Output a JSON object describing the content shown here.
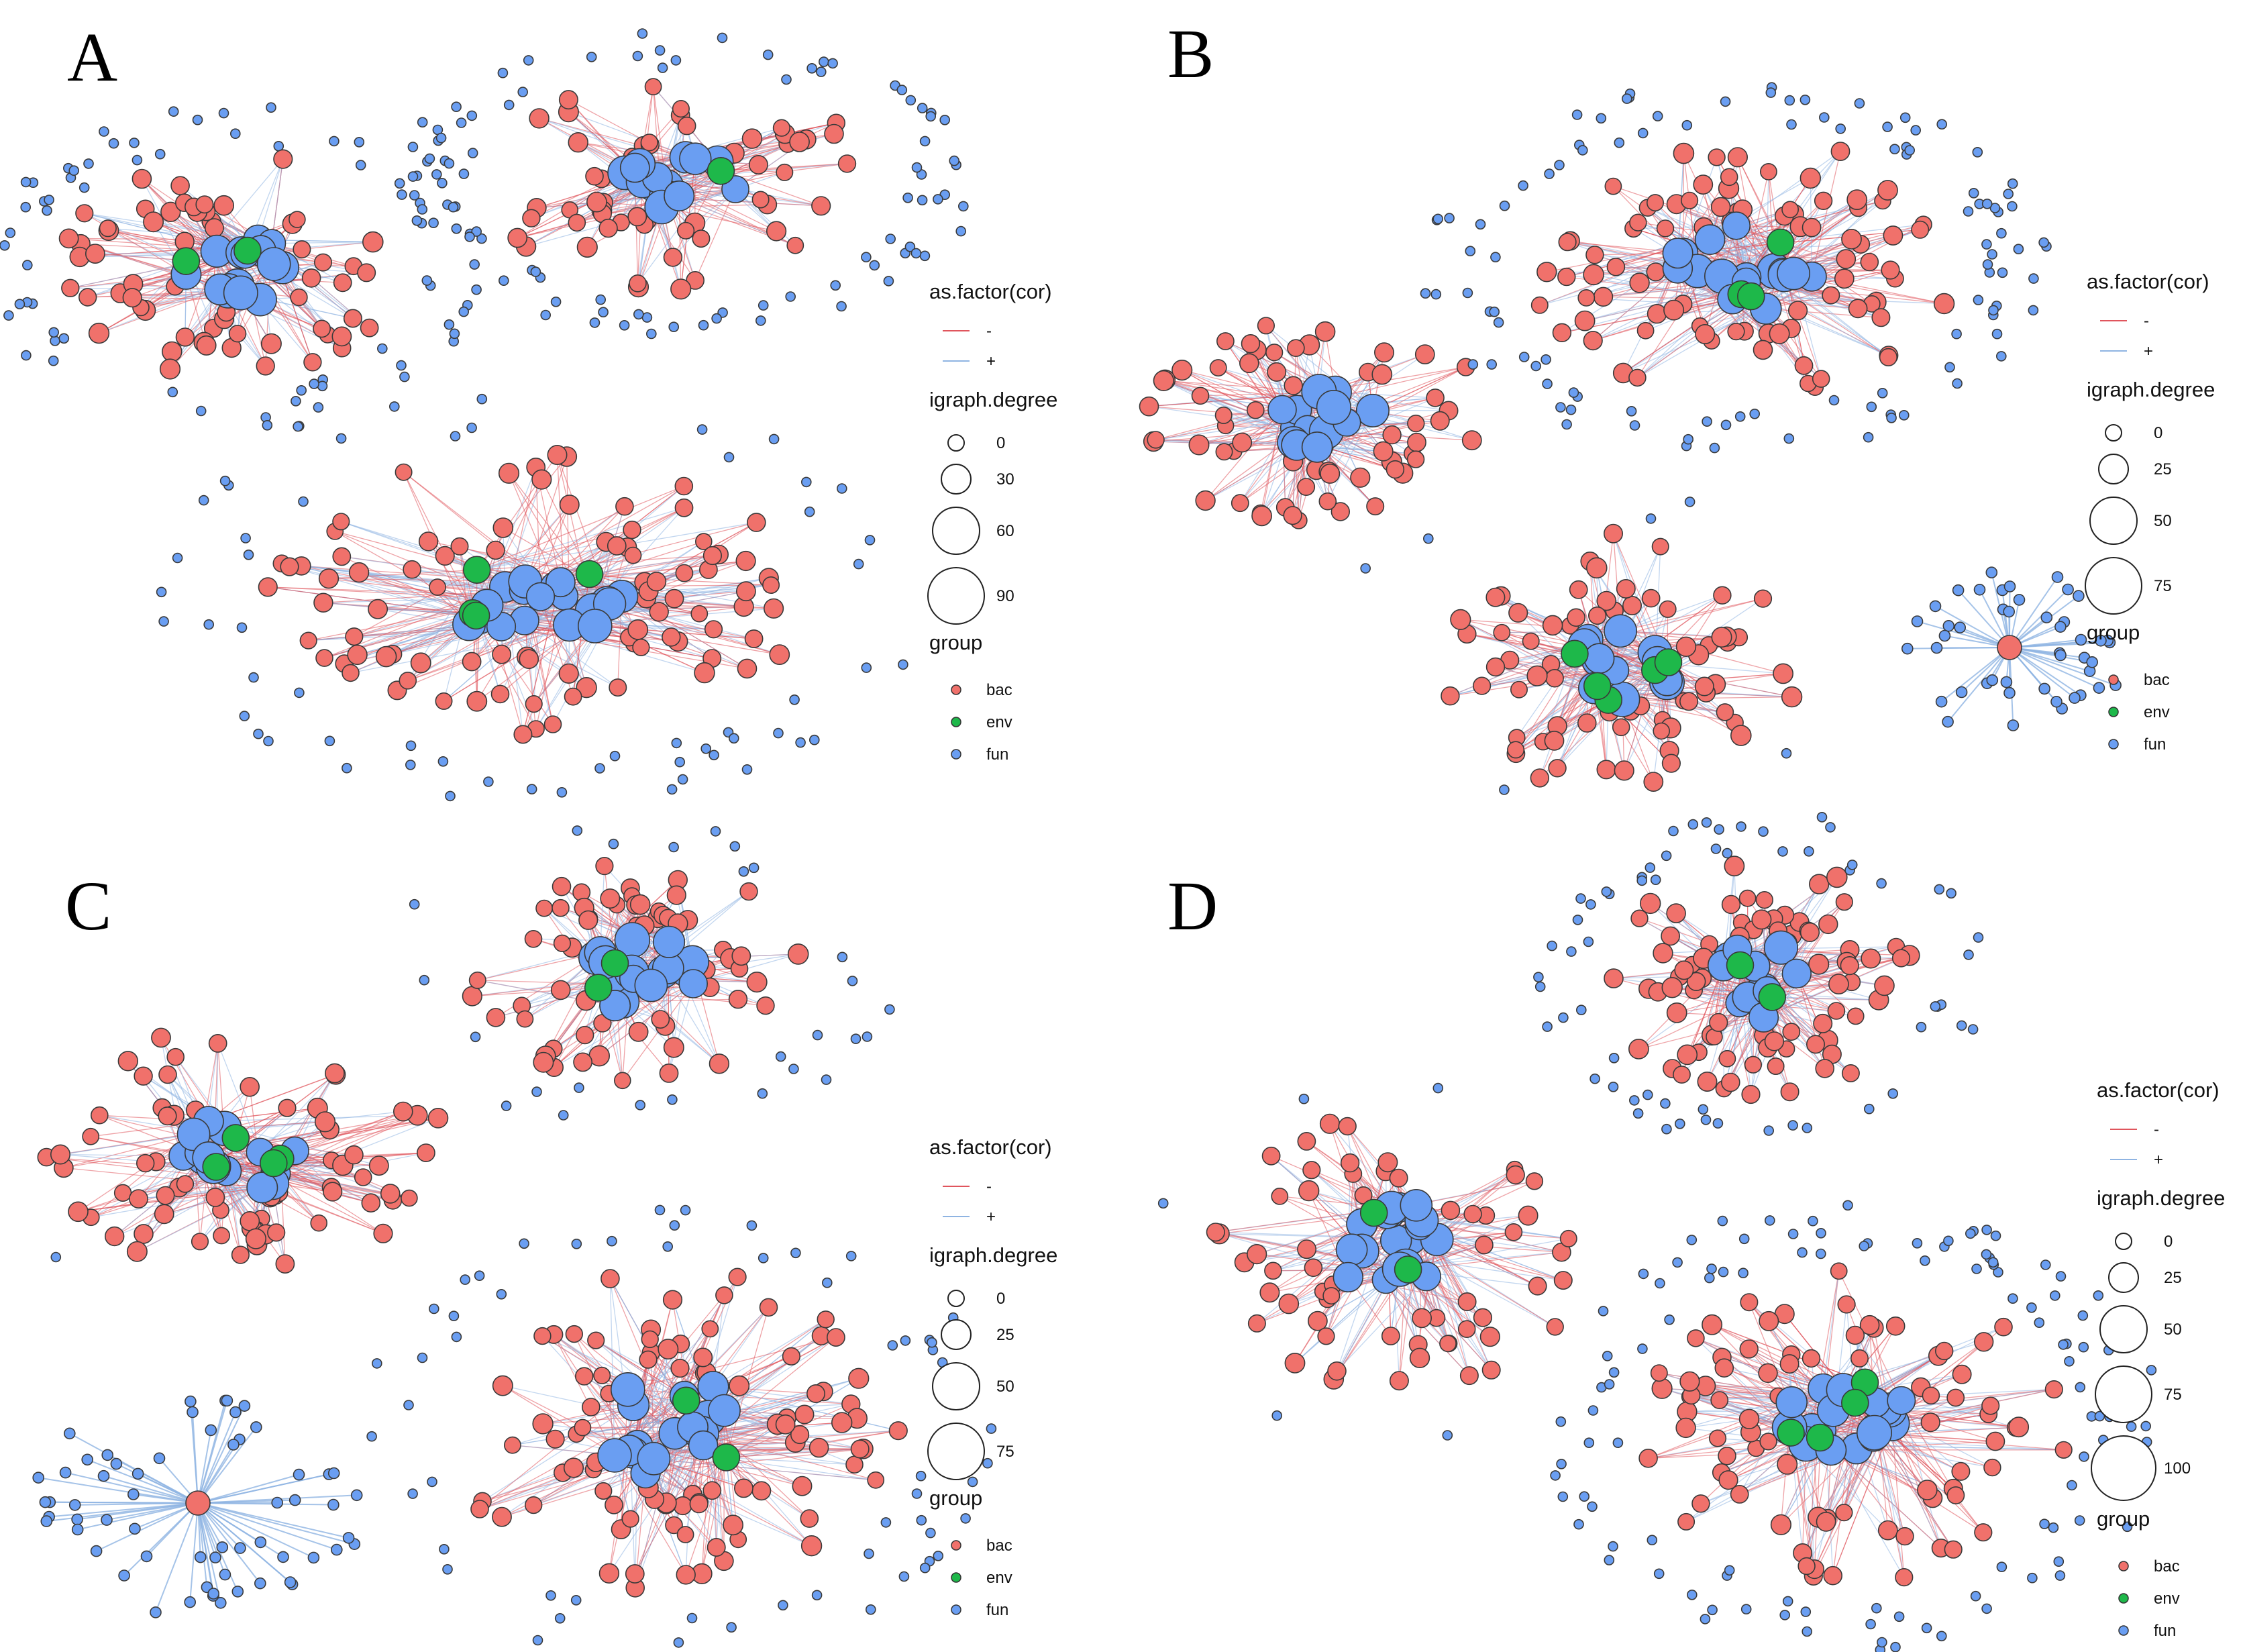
{
  "colors": {
    "bac": "#f0716b",
    "env": "#1eb84a",
    "fun": "#6a9ef2",
    "neg_edge": "#e0555d",
    "pos_edge": "#8fb4e2",
    "node_stroke": "#3a3a3a"
  },
  "panels": [
    {
      "letter": "A",
      "legend": {
        "cor_title": "as.factor(cor)",
        "cor_neg": "-",
        "cor_pos": "+",
        "deg_title": "igraph.degree",
        "deg_values": [
          "0",
          "30",
          "60",
          "90"
        ],
        "group_title": "group",
        "groups": [
          "bac",
          "env",
          "fun"
        ]
      },
      "clusters": [
        {
          "bac": 60,
          "fun_core": 14,
          "env": 2,
          "fun_outer": 70,
          "radius": "medium"
        },
        {
          "bac": 55,
          "fun_core": 14,
          "env": 1,
          "fun_outer": 90,
          "radius": "medium"
        },
        {
          "bac": 90,
          "fun_core": 18,
          "env": 4,
          "fun_outer": 55,
          "radius": "large"
        }
      ]
    },
    {
      "letter": "B",
      "legend": {
        "cor_title": "as.factor(cor)",
        "cor_neg": "-",
        "cor_pos": "+",
        "deg_title": "igraph.degree",
        "deg_values": [
          "0",
          "25",
          "50",
          "75"
        ],
        "group_title": "group",
        "groups": [
          "bac",
          "env",
          "fun"
        ]
      },
      "clusters": [
        {
          "bac": 60,
          "fun_core": 14,
          "env": 0,
          "fun_outer": 3,
          "radius": "medium"
        },
        {
          "bac": 85,
          "fun_core": 16,
          "env": 3,
          "fun_outer": 100,
          "radius": "large"
        },
        {
          "bac": 70,
          "fun_core": 12,
          "env": 5,
          "fun_outer": 5,
          "radius": "medium"
        },
        {
          "bac": 1,
          "fun_core": 0,
          "env": 0,
          "fun_outer": 45,
          "radius": "star"
        }
      ]
    },
    {
      "letter": "C",
      "legend": {
        "cor_title": "as.factor(cor)",
        "cor_neg": "-",
        "cor_pos": "+",
        "deg_title": "igraph.degree",
        "deg_values": [
          "0",
          "25",
          "50",
          "75"
        ],
        "group_title": "group",
        "groups": [
          "bac",
          "env",
          "fun"
        ]
      },
      "clusters": [
        {
          "bac": 70,
          "fun_core": 14,
          "env": 4,
          "fun_outer": 2,
          "radius": "large"
        },
        {
          "bac": 60,
          "fun_core": 16,
          "env": 2,
          "fun_outer": 25,
          "radius": "medium"
        },
        {
          "bac": 90,
          "fun_core": 16,
          "env": 2,
          "fun_outer": 60,
          "radius": "large"
        },
        {
          "bac": 1,
          "fun_core": 0,
          "env": 0,
          "fun_outer": 60,
          "radius": "star"
        }
      ]
    },
    {
      "letter": "D",
      "legend": {
        "cor_title": "as.factor(cor)",
        "cor_neg": "-",
        "cor_pos": "+",
        "deg_title": "igraph.degree",
        "deg_values": [
          "0",
          "25",
          "50",
          "75",
          "100"
        ],
        "group_title": "group",
        "groups": [
          "bac",
          "env",
          "fun"
        ]
      },
      "clusters": [
        {
          "bac": 60,
          "fun_core": 18,
          "env": 2,
          "fun_outer": 5,
          "radius": "medium"
        },
        {
          "bac": 80,
          "fun_core": 12,
          "env": 2,
          "fun_outer": 60,
          "radius": "large"
        },
        {
          "bac": 80,
          "fun_core": 18,
          "env": 4,
          "fun_outer": 110,
          "radius": "large"
        }
      ]
    }
  ]
}
